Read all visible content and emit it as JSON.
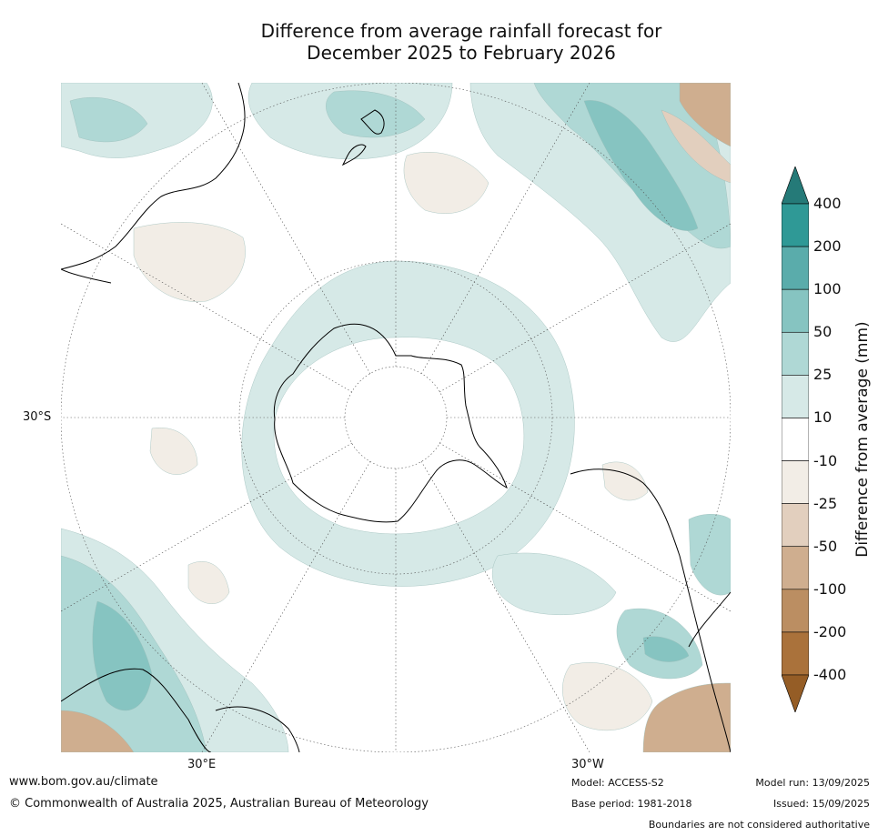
{
  "title_line1": "Difference from average rainfall forecast for",
  "title_line2": "December 2025 to February 2026",
  "map": {
    "projection": "south polar stereographic",
    "lat_label": "30°S",
    "lon_label_left": "30°E",
    "lon_label_right": "30°W"
  },
  "colorbar": {
    "title": "Difference from average (mm)",
    "ticks": [
      "400",
      "200",
      "100",
      "50",
      "25",
      "10",
      "-10",
      "-25",
      "-50",
      "-100",
      "-200",
      "-400"
    ],
    "colors": [
      "#257a78",
      "#2f9996",
      "#5aacab",
      "#86c4c1",
      "#afd8d5",
      "#d6e9e7",
      "#ffffff",
      "#f2ede6",
      "#e2cfbe",
      "#cfae8f",
      "#bb8e62",
      "#aa723b",
      "#955d26"
    ]
  },
  "footer": {
    "url": "www.bom.gov.au/climate",
    "copyright": "© Commonwealth of Australia 2025, Australian Bureau of Meteorology",
    "model": "Model: ACCESS-S2",
    "base_period": "Base period: 1981-2018",
    "model_run": "Model run: 13/09/2025",
    "issued": "Issued: 15/09/2025",
    "disclaimer": "Boundaries are not considered authoritative"
  }
}
